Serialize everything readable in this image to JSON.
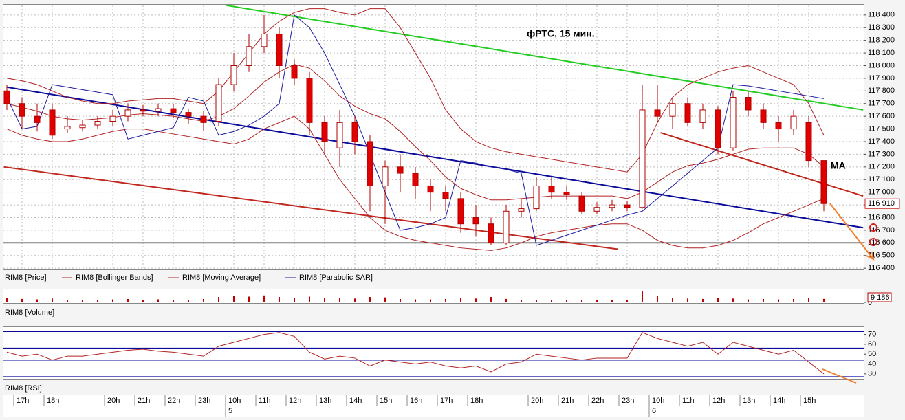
{
  "chart_data": [
    {
      "type": "candlestick",
      "name": "RIM8 [Price]",
      "title": "фРТС, 15 мин.",
      "annotation": "MA",
      "up_color": "#ffffff",
      "down_color": "#e00000",
      "wick_color": "#b00000",
      "open": [
        117800,
        117700,
        117600,
        117650,
        117500,
        117510,
        117530,
        117560,
        117600,
        117650,
        117640,
        117660,
        117630,
        117600,
        117560,
        117850,
        118000,
        118150,
        118250,
        118000,
        117900,
        117550,
        117350,
        117550,
        117400,
        117050,
        117200,
        117150,
        117050,
        117000,
        116950,
        116800,
        116750,
        116600,
        116850,
        116870,
        117050,
        117000,
        116970,
        116850,
        116880,
        116900,
        116880,
        117650,
        117600,
        117700,
        117550,
        117650,
        117350,
        117750,
        117650,
        117550,
        117500,
        117550,
        117250
      ],
      "high": [
        117850,
        117750,
        117700,
        117700,
        117600,
        117570,
        117600,
        117650,
        117700,
        117690,
        117700,
        117700,
        117660,
        117640,
        117900,
        118100,
        118250,
        118400,
        118300,
        118050,
        117950,
        117600,
        117650,
        117600,
        117450,
        117250,
        117300,
        117200,
        117100,
        117050,
        117000,
        116900,
        116800,
        116900,
        116950,
        117120,
        117120,
        117050,
        117000,
        116920,
        116940,
        116930,
        117850,
        117850,
        117750,
        117750,
        117700,
        117680,
        117800,
        117800,
        117700,
        117600,
        117650,
        117600,
        117250
      ],
      "low": [
        117650,
        117500,
        117480,
        117420,
        117470,
        117480,
        117500,
        117520,
        117560,
        117600,
        117600,
        117590,
        117540,
        117480,
        117520,
        117800,
        117950,
        118100,
        117900,
        117850,
        117450,
        117300,
        117200,
        117300,
        116850,
        116750,
        117000,
        116950,
        116850,
        116850,
        116680,
        116650,
        116580,
        116580,
        116800,
        116850,
        116950,
        116940,
        116830,
        116830,
        116850,
        116850,
        116870,
        117550,
        117500,
        117520,
        117500,
        117300,
        117330,
        117600,
        117500,
        117400,
        117450,
        117200,
        116850
      ],
      "close": [
        117700,
        117600,
        117550,
        117450,
        117520,
        117530,
        117560,
        117600,
        117650,
        117640,
        117660,
        117630,
        117600,
        117550,
        117850,
        118000,
        118150,
        118250,
        118000,
        117900,
        117550,
        117400,
        117550,
        117400,
        117050,
        117200,
        117150,
        117050,
        117000,
        116950,
        116750,
        116750,
        116600,
        116850,
        116870,
        117050,
        117000,
        116980,
        116850,
        116880,
        116900,
        116880,
        117650,
        117600,
        117700,
        117550,
        117650,
        117350,
        117750,
        117650,
        117550,
        117500,
        117600,
        117250,
        116910
      ],
      "last_label": "116 910",
      "series": [
        {
          "name": "RIM8 [Bollinger Bands]",
          "color": "#b22222",
          "upper": [
            117900,
            117880,
            117850,
            117800,
            117750,
            117720,
            117700,
            117700,
            117720,
            117730,
            117740,
            117740,
            117720,
            117700,
            117800,
            117950,
            118100,
            118250,
            118350,
            118420,
            118450,
            118450,
            118420,
            118400,
            118450,
            118450,
            118300,
            118100,
            117900,
            117650,
            117500,
            117400,
            117350,
            117320,
            117300,
            117280,
            117260,
            117240,
            117220,
            117200,
            117180,
            117160,
            117300,
            117550,
            117750,
            117850,
            117900,
            117950,
            117980,
            118000,
            117950,
            117900,
            117850,
            117700,
            117450
          ],
          "lower": [
            117500,
            117450,
            117420,
            117400,
            117400,
            117420,
            117450,
            117480,
            117500,
            117500,
            117480,
            117460,
            117440,
            117420,
            117400,
            117380,
            117420,
            117500,
            117550,
            117600,
            117500,
            117300,
            117100,
            116950,
            116800,
            116700,
            116650,
            116620,
            116600,
            116580,
            116560,
            116550,
            116540,
            116560,
            116600,
            116650,
            116680,
            116700,
            116720,
            116740,
            116750,
            116750,
            116700,
            116620,
            116580,
            116560,
            116560,
            116580,
            116620,
            116680,
            116750,
            116800,
            116850,
            116900,
            116950
          ]
        },
        {
          "name": "RIM8 [Moving Average]",
          "color": "#b22222",
          "values": [
            117700,
            117670,
            117640,
            117600,
            117580,
            117570,
            117580,
            117590,
            117610,
            117620,
            117610,
            117600,
            117580,
            117560,
            117600,
            117660,
            117760,
            117870,
            117950,
            118010,
            117980,
            117880,
            117760,
            117680,
            117620,
            117580,
            117480,
            117360,
            117250,
            117120,
            117030,
            116980,
            116940,
            116940,
            116950,
            116960,
            116970,
            116970,
            116970,
            116970,
            116970,
            116950,
            117000,
            117080,
            117160,
            117210,
            117230,
            117260,
            117300,
            117340,
            117350,
            117350,
            117350,
            117300,
            117200
          ]
        },
        {
          "name": "RIM8 [Parabolic SAR]",
          "color": "#1a1aa0",
          "values": [
            117750,
            117500,
            117520,
            117850,
            117830,
            117810,
            117790,
            117770,
            117420,
            117450,
            117480,
            117510,
            117750,
            117720,
            117450,
            117480,
            117530,
            117600,
            117700,
            118400,
            118300,
            118100,
            117850,
            117600,
            117300,
            117000,
            116700,
            116720,
            116750,
            116800,
            117250,
            117230,
            117200,
            117180,
            117150,
            116580,
            116620,
            116660,
            116700,
            116740,
            116780,
            116820,
            116850,
            116950,
            117050,
            117150,
            117250,
            117350,
            117850,
            117840,
            117820,
            117800,
            117780,
            117760,
            117740
          ]
        }
      ],
      "lines": [
        {
          "color": "#22cc22",
          "points": [
            [
              14.5,
              118476
            ],
            [
              56.6,
              117650
            ]
          ]
        },
        {
          "color": "#0a0a9a",
          "points": [
            [
              0,
              117830
            ],
            [
              56.6,
              116720
            ]
          ]
        },
        {
          "color": "#c0281e",
          "points": [
            [
              -0.2,
              117200
            ],
            [
              40.4,
              116550
            ]
          ]
        },
        {
          "color": "#c0281e",
          "points": [
            [
              43.2,
              117470
            ],
            [
              56.6,
              116970
            ]
          ]
        }
      ],
      "hline": {
        "value": 116600,
        "color": "#000000"
      },
      "ylim": [
        116390,
        118475
      ],
      "yticks": [
        {
          "value": 116400,
          "label": "116 400"
        },
        {
          "value": 116500,
          "label": "116 500"
        },
        {
          "value": 116600,
          "label": "116 600"
        },
        {
          "value": 116700,
          "label": "116 700"
        },
        {
          "value": 116800,
          "label": "116 800"
        },
        {
          "value": 116900,
          "label": "116 900"
        },
        {
          "value": 117000,
          "label": "117 000"
        },
        {
          "value": 117100,
          "label": "117 100"
        },
        {
          "value": 117200,
          "label": "117 200"
        },
        {
          "value": 117300,
          "label": "117 300"
        },
        {
          "value": 117400,
          "label": "117 400"
        },
        {
          "value": 117500,
          "label": "117 500"
        },
        {
          "value": 117600,
          "label": "117 600"
        },
        {
          "value": 117700,
          "label": "117 700"
        },
        {
          "value": 117800,
          "label": "117 800"
        },
        {
          "value": 117900,
          "label": "117 900"
        },
        {
          "value": 118000,
          "label": "118 000"
        },
        {
          "value": 118100,
          "label": "118 100"
        },
        {
          "value": 118200,
          "label": "118 200"
        },
        {
          "value": 118300,
          "label": "118 300"
        },
        {
          "value": 118400,
          "label": "118 400"
        }
      ],
      "grid": true
    },
    {
      "type": "bar",
      "name": "RIM8 [Volume]",
      "color": "#c00000",
      "values": [
        12000,
        9000,
        8000,
        10000,
        7000,
        6000,
        7000,
        8000,
        9000,
        7000,
        8000,
        6000,
        7000,
        9000,
        14000,
        16000,
        15000,
        18000,
        14000,
        12000,
        15000,
        11000,
        12000,
        10000,
        14000,
        13000,
        9000,
        8000,
        8000,
        9000,
        11000,
        10000,
        14000,
        9000,
        7000,
        6000,
        7000,
        6000,
        7000,
        6000,
        6000,
        7000,
        30000,
        16000,
        12000,
        10000,
        9000,
        11000,
        10000,
        8000,
        9000,
        8000,
        9000,
        11000,
        9186
      ],
      "last_label": "9 186",
      "ylim": [
        0,
        30000
      ],
      "yticks": [
        0
      ]
    },
    {
      "type": "line",
      "name": "RIM8 [RSI]",
      "color": "#b22222",
      "values": [
        52,
        48,
        50,
        44,
        48,
        48,
        50,
        52,
        54,
        55,
        53,
        52,
        50,
        48,
        58,
        62,
        66,
        70,
        72,
        68,
        52,
        45,
        48,
        46,
        38,
        44,
        42,
        40,
        42,
        38,
        36,
        38,
        32,
        40,
        42,
        50,
        48,
        46,
        44,
        46,
        46,
        46,
        72,
        66,
        62,
        58,
        62,
        50,
        62,
        58,
        54,
        50,
        54,
        42,
        30
      ],
      "hlines": [
        73,
        56,
        44,
        27
      ],
      "hline_color": "#0a0a9a",
      "ylim": [
        25,
        76
      ],
      "yticks": [
        30,
        40,
        50,
        60,
        70
      ],
      "categories": [
        null,
        "17h",
        null,
        "18h",
        null,
        null,
        null,
        "20h",
        null,
        "21h",
        null,
        "22h",
        null,
        "23h",
        null,
        "10h",
        null,
        "11h",
        null,
        "12h",
        null,
        "13h",
        null,
        "14h",
        null,
        "15h",
        null,
        "16h",
        null,
        "17h",
        null,
        "18h",
        null,
        null,
        null,
        "20h",
        null,
        "21h",
        null,
        "22h",
        null,
        "23h",
        null,
        "10h",
        null,
        "11h",
        null,
        "12h",
        null,
        "13h",
        null,
        "14h",
        null,
        "15h",
        null
      ],
      "dates": [
        null,
        null,
        null,
        null,
        null,
        null,
        null,
        null,
        null,
        null,
        null,
        null,
        null,
        null,
        null,
        "5",
        null,
        null,
        null,
        null,
        null,
        null,
        null,
        null,
        null,
        null,
        null,
        null,
        null,
        null,
        null,
        null,
        null,
        null,
        null,
        null,
        null,
        null,
        null,
        null,
        null,
        null,
        null,
        "6",
        null,
        null,
        null,
        null,
        null,
        null,
        null,
        null,
        null,
        null,
        null
      ]
    }
  ]
}
